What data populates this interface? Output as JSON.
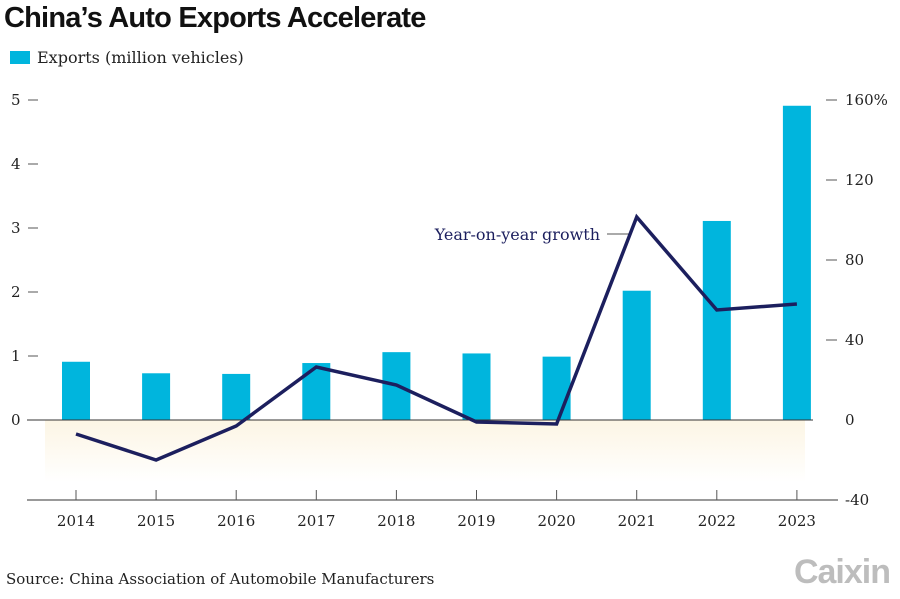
{
  "chart_data": {
    "type": "bar+line",
    "title": "China’s Auto Exports Accelerate",
    "categories": [
      "2014",
      "2015",
      "2016",
      "2017",
      "2018",
      "2019",
      "2020",
      "2021",
      "2022",
      "2023"
    ],
    "series": [
      {
        "name": "Exports (million vehicles)",
        "type": "bar",
        "axis": "left",
        "color": "#00b5dd",
        "values": [
          0.91,
          0.73,
          0.72,
          0.89,
          1.06,
          1.04,
          0.99,
          2.02,
          3.11,
          4.91
        ]
      },
      {
        "name": "Year-on-year growth",
        "type": "line",
        "axis": "right",
        "color": "#1c1f5e",
        "values": [
          -7,
          -20,
          -3,
          26.5,
          17.5,
          -1,
          -2,
          101.5,
          55,
          58
        ]
      }
    ],
    "left_axis": {
      "ylim": [
        -1.25,
        5
      ],
      "ticks": [
        "0",
        "1",
        "2",
        "3",
        "4",
        "5"
      ],
      "tick_values": [
        0,
        1,
        2,
        3,
        4,
        5
      ]
    },
    "right_axis": {
      "ylim": [
        -40,
        160
      ],
      "ticks": [
        "-40",
        "0",
        "40",
        "80",
        "120",
        "160%"
      ],
      "tick_values": [
        -40,
        0,
        40,
        80,
        120,
        160
      ]
    },
    "legend_position": "top-left",
    "annotation": "Year-on-year growth",
    "negative_region_color": "#fdf8ec",
    "grid": false
  },
  "source": "Source: China Association of Automobile Manufacturers",
  "logo": "Caixin"
}
